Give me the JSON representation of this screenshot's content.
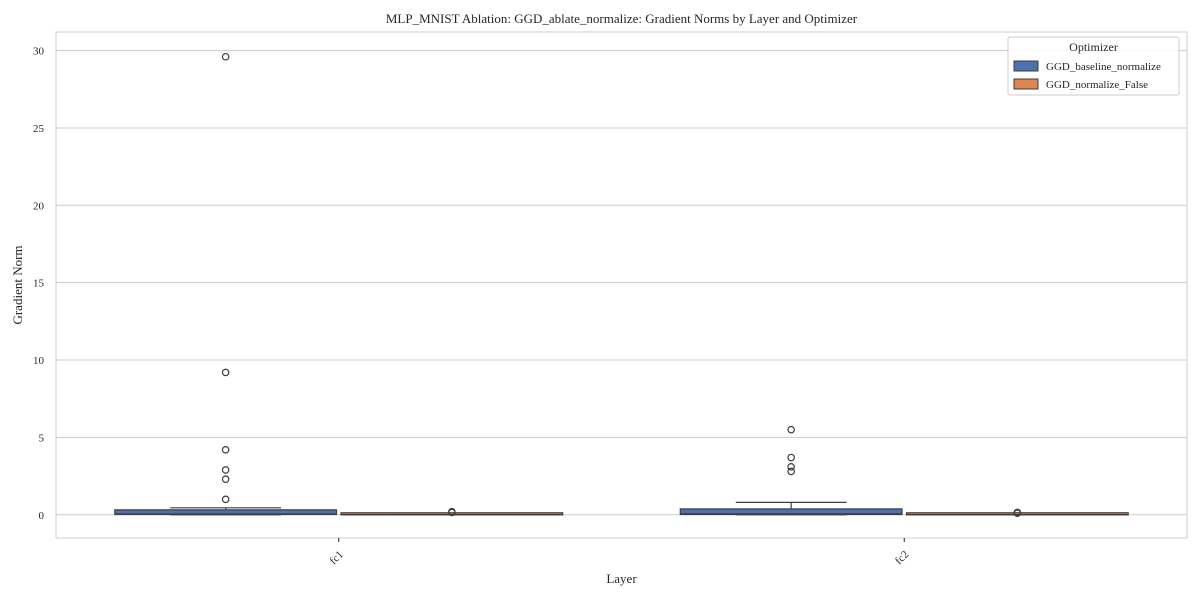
{
  "chart_data": {
    "type": "box",
    "title": "MLP_MNIST Ablation: GGD_ablate_normalize: Gradient Norms by Layer and Optimizer",
    "xlabel": "Layer",
    "ylabel": "Gradient Norm",
    "categories": [
      "fc1",
      "fc2"
    ],
    "ylim": [
      -1.5,
      31.2
    ],
    "yticks": [
      0,
      5,
      10,
      15,
      20,
      25,
      30
    ],
    "grid": true,
    "legend": {
      "title": "Optimizer",
      "placement": "top-right"
    },
    "series": [
      {
        "name": "GGD_baseline_normalize",
        "color": "#4c72b0",
        "boxes": [
          {
            "category": "fc1",
            "whisker_low": 0.0,
            "q1": 0.02,
            "median": 0.05,
            "q3": 0.32,
            "whisker_high": 0.45,
            "outliers": [
              29.6,
              9.2,
              4.2,
              2.9,
              2.3,
              1.0
            ]
          },
          {
            "category": "fc2",
            "whisker_low": 0.0,
            "q1": 0.02,
            "median": 0.06,
            "q3": 0.38,
            "whisker_high": 0.8,
            "outliers": [
              5.5,
              3.7,
              3.1,
              2.8
            ]
          }
        ]
      },
      {
        "name": "GGD_normalize_False",
        "color": "#dd8452",
        "boxes": [
          {
            "category": "fc1",
            "whisker_low": 0.0,
            "q1": 0.0,
            "median": 0.01,
            "q3": 0.03,
            "whisker_high": 0.07,
            "outliers": [
              0.2,
              0.15
            ]
          },
          {
            "category": "fc2",
            "whisker_low": 0.0,
            "q1": 0.0,
            "median": 0.01,
            "q3": 0.02,
            "whisker_high": 0.05,
            "outliers": [
              0.15,
              0.1
            ]
          }
        ]
      }
    ]
  }
}
